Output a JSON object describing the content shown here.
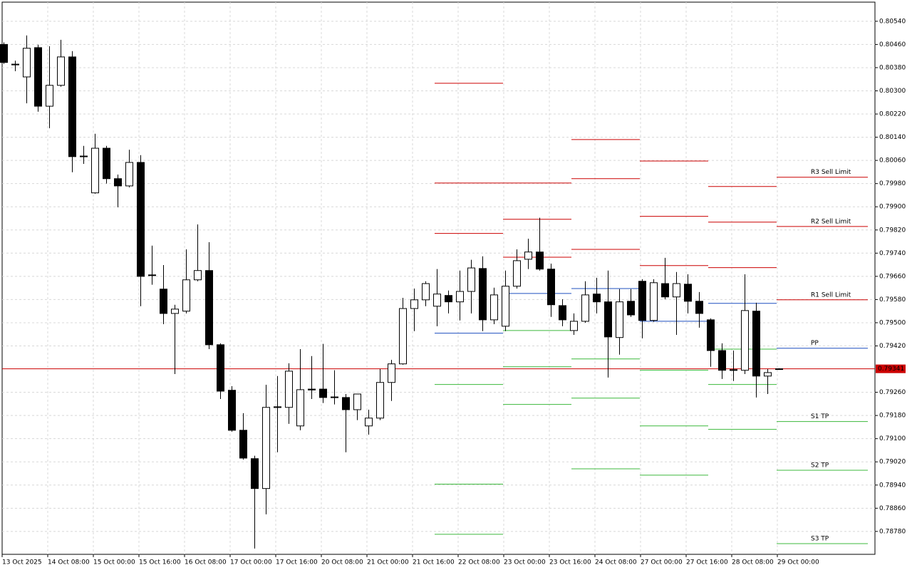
{
  "chart_data": {
    "type": "candlestick",
    "categories": [
      "13 Oct 2025",
      null,
      null,
      null,
      "14 Oct 08:00",
      null,
      null,
      null,
      "15 Oct 00:00",
      null,
      null,
      null,
      "15 Oct 16:00",
      null,
      null,
      null,
      "16 Oct 08:00",
      null,
      null,
      null,
      "17 Oct 00:00",
      null,
      null,
      null,
      "17 Oct 16:00",
      null,
      null,
      null,
      "20 Oct 08:00",
      null,
      null,
      null,
      "21 Oct 00:00",
      null,
      null,
      null,
      "21 Oct 16:00",
      null,
      null,
      null,
      "22 Oct 08:00",
      null,
      null,
      null,
      "23 Oct 00:00",
      null,
      null,
      null,
      "23 Oct 16:00",
      null,
      null,
      null,
      "24 Oct 08:00",
      null,
      null,
      null,
      "27 Oct 00:00",
      null,
      null,
      null,
      "27 Oct 16:00",
      null,
      null,
      null,
      "28 Oct 08:00",
      null,
      null,
      null,
      "29 Oct 00:00"
    ],
    "open": [
      0.8046,
      0.80392,
      0.80348,
      0.80449,
      0.80247,
      0.80319,
      0.80417,
      0.80073,
      0.79948,
      0.80102,
      0.79997,
      0.79972,
      0.80053,
      0.79665,
      0.79616,
      0.79532,
      0.7954,
      0.79648,
      0.7968,
      0.79424,
      0.79267,
      0.79129,
      0.79031,
      0.78928,
      0.79208,
      0.79208,
      0.79144,
      0.79271,
      0.79271,
      0.79242,
      0.79242,
      0.792,
      0.79144,
      0.79171,
      0.79294,
      0.79358,
      0.79549,
      0.79579,
      0.79557,
      0.79594,
      0.79572,
      0.79608,
      0.79687,
      0.7951,
      0.79488,
      0.79626,
      0.79719,
      0.79744,
      0.79685,
      0.79559,
      0.79473,
      0.79505,
      0.79599,
      0.79572,
      0.79449,
      0.79574,
      0.79643,
      0.79508,
      0.79635,
      0.79589,
      0.79633,
      0.79574,
      0.7951,
      0.79404,
      0.79338,
      0.79336,
      0.7954,
      0.79316,
      0.79341
    ],
    "high": [
      0.80467,
      0.80404,
      0.80491,
      0.80459,
      0.80454,
      0.80476,
      0.80437,
      0.8011,
      0.80152,
      0.8011,
      0.80011,
      0.80097,
      0.80078,
      0.79766,
      0.79699,
      0.79562,
      0.79753,
      0.79839,
      0.79778,
      0.79429,
      0.79281,
      0.79188,
      0.79041,
      0.79286,
      0.79316,
      0.7936,
      0.79409,
      0.79385,
      0.79427,
      0.79336,
      0.79254,
      0.79254,
      0.792,
      0.7934,
      0.79372,
      0.79586,
      0.79618,
      0.79643,
      0.79685,
      0.79611,
      0.7968,
      0.79717,
      0.79729,
      0.79621,
      0.7968,
      0.79753,
      0.7979,
      0.79862,
      0.79704,
      0.79581,
      0.79532,
      0.79643,
      0.79655,
      0.7968,
      0.79616,
      0.79616,
      0.7965,
      0.7965,
      0.79724,
      0.79675,
      0.79667,
      0.79606,
      0.79515,
      0.79429,
      0.79404,
      0.79667,
      0.79569,
      0.7934,
      0.79343
    ],
    "low": [
      0.80393,
      0.80368,
      0.80257,
      0.80228,
      0.80171,
      0.80314,
      0.80019,
      0.80048,
      0.79945,
      0.7998,
      0.79898,
      0.79967,
      0.79557,
      0.79631,
      0.79495,
      0.79323,
      0.79532,
      0.79643,
      0.79409,
      0.79237,
      0.79124,
      0.79028,
      0.78721,
      0.78839,
      0.79053,
      0.79151,
      0.79129,
      0.79237,
      0.79223,
      0.79218,
      0.79053,
      0.79164,
      0.79114,
      0.79164,
      0.7923,
      0.79355,
      0.79471,
      0.79557,
      0.79488,
      0.79532,
      0.79508,
      0.79532,
      0.79471,
      0.79495,
      0.79471,
      0.79618,
      0.79685,
      0.7968,
      0.7952,
      0.79488,
      0.79458,
      0.795,
      0.79532,
      0.79311,
      0.7939,
      0.7952,
      0.79446,
      0.79503,
      0.79581,
      0.79458,
      0.79532,
      0.79483,
      0.79348,
      0.79306,
      0.79299,
      0.79323,
      0.79242,
      0.79254,
      0.79338
    ],
    "close": [
      0.80398,
      0.8039,
      0.80447,
      0.80247,
      0.80319,
      0.80417,
      0.80073,
      0.80075,
      0.80102,
      0.79997,
      0.79972,
      0.80053,
      0.7966,
      0.79663,
      0.79532,
      0.79547,
      0.79648,
      0.7968,
      0.79424,
      0.79264,
      0.79129,
      0.79033,
      0.78928,
      0.79208,
      0.7921,
      0.79333,
      0.79269,
      0.79268,
      0.79242,
      0.79244,
      0.792,
      0.79254,
      0.79171,
      0.79294,
      0.79358,
      0.79549,
      0.79579,
      0.79635,
      0.79599,
      0.79572,
      0.79608,
      0.79689,
      0.7951,
      0.79596,
      0.79626,
      0.79714,
      0.79744,
      0.79685,
      0.79562,
      0.7951,
      0.79505,
      0.79596,
      0.79572,
      0.79451,
      0.79572,
      0.79527,
      0.79508,
      0.79638,
      0.79589,
      0.79635,
      0.79574,
      0.79532,
      0.79404,
      0.79336,
      0.79336,
      0.79542,
      0.79316,
      0.79328,
      0.79341
    ],
    "pivots": [
      {
        "name": "R3 Sell Limit",
        "color": "#cc0000",
        "values": [
          0.80326,
          0.79982,
          0.80132,
          0.80058,
          0.7997,
          0.80002
        ]
      },
      {
        "name": "R2 Sell Limit",
        "color": "#cc0000",
        "values": [
          0.79982,
          0.79857,
          0.79997,
          0.79867,
          0.79847,
          0.79832
        ]
      },
      {
        "name": "R1 Sell Limit",
        "color": "#cc0000",
        "values": [
          0.79808,
          0.79726,
          0.79753,
          0.79697,
          0.7969,
          0.79579
        ]
      },
      {
        "name": "PP",
        "color": "#1f4fbf",
        "values": [
          0.79464,
          0.79601,
          0.79618,
          0.79505,
          0.79567,
          0.79412
        ]
      },
      {
        "name": "S1 TP",
        "color": "#3cb83c",
        "values": [
          0.79287,
          0.79473,
          0.79375,
          0.79336,
          0.79409,
          0.79159
        ]
      },
      {
        "name": "S2 TP",
        "color": "#3cb83c",
        "values": [
          0.78943,
          0.79348,
          0.7924,
          0.79144,
          0.79287,
          0.78991
        ]
      },
      {
        "name": "S3 TP",
        "color": "#3cb83c",
        "values": [
          0.7877,
          0.79218,
          0.78996,
          0.78974,
          0.79132,
          0.78738
        ]
      }
    ],
    "current_price": 0.79341,
    "current_price_color": "#cc0000",
    "ylim": [
      0.78701,
      0.80606
    ],
    "yticks": [
      {
        "value": 0.8054,
        "label": "0.80540"
      },
      {
        "value": 0.8046,
        "label": "0.80460"
      },
      {
        "value": 0.8038,
        "label": "0.80380"
      },
      {
        "value": 0.803,
        "label": "0.80300"
      },
      {
        "value": 0.8022,
        "label": "0.80220"
      },
      {
        "value": 0.8014,
        "label": "0.80140"
      },
      {
        "value": 0.8006,
        "label": "0.80060"
      },
      {
        "value": 0.7998,
        "label": "0.79980"
      },
      {
        "value": 0.799,
        "label": "0.79900"
      },
      {
        "value": 0.7982,
        "label": "0.79820"
      },
      {
        "value": 0.7974,
        "label": "0.79740"
      },
      {
        "value": 0.7966,
        "label": "0.79660"
      },
      {
        "value": 0.7958,
        "label": "0.79580"
      },
      {
        "value": 0.795,
        "label": "0.79500"
      },
      {
        "value": 0.7942,
        "label": "0.79420"
      },
      {
        "value": 0.7926,
        "label": "0.79260"
      },
      {
        "value": 0.7918,
        "label": "0.79180"
      },
      {
        "value": 0.791,
        "label": "0.79100"
      },
      {
        "value": 0.7902,
        "label": "0.79020"
      },
      {
        "value": 0.7894,
        "label": "0.78940"
      },
      {
        "value": 0.7886,
        "label": "0.78860"
      },
      {
        "value": 0.7878,
        "label": "0.78780"
      }
    ],
    "grid": true
  }
}
